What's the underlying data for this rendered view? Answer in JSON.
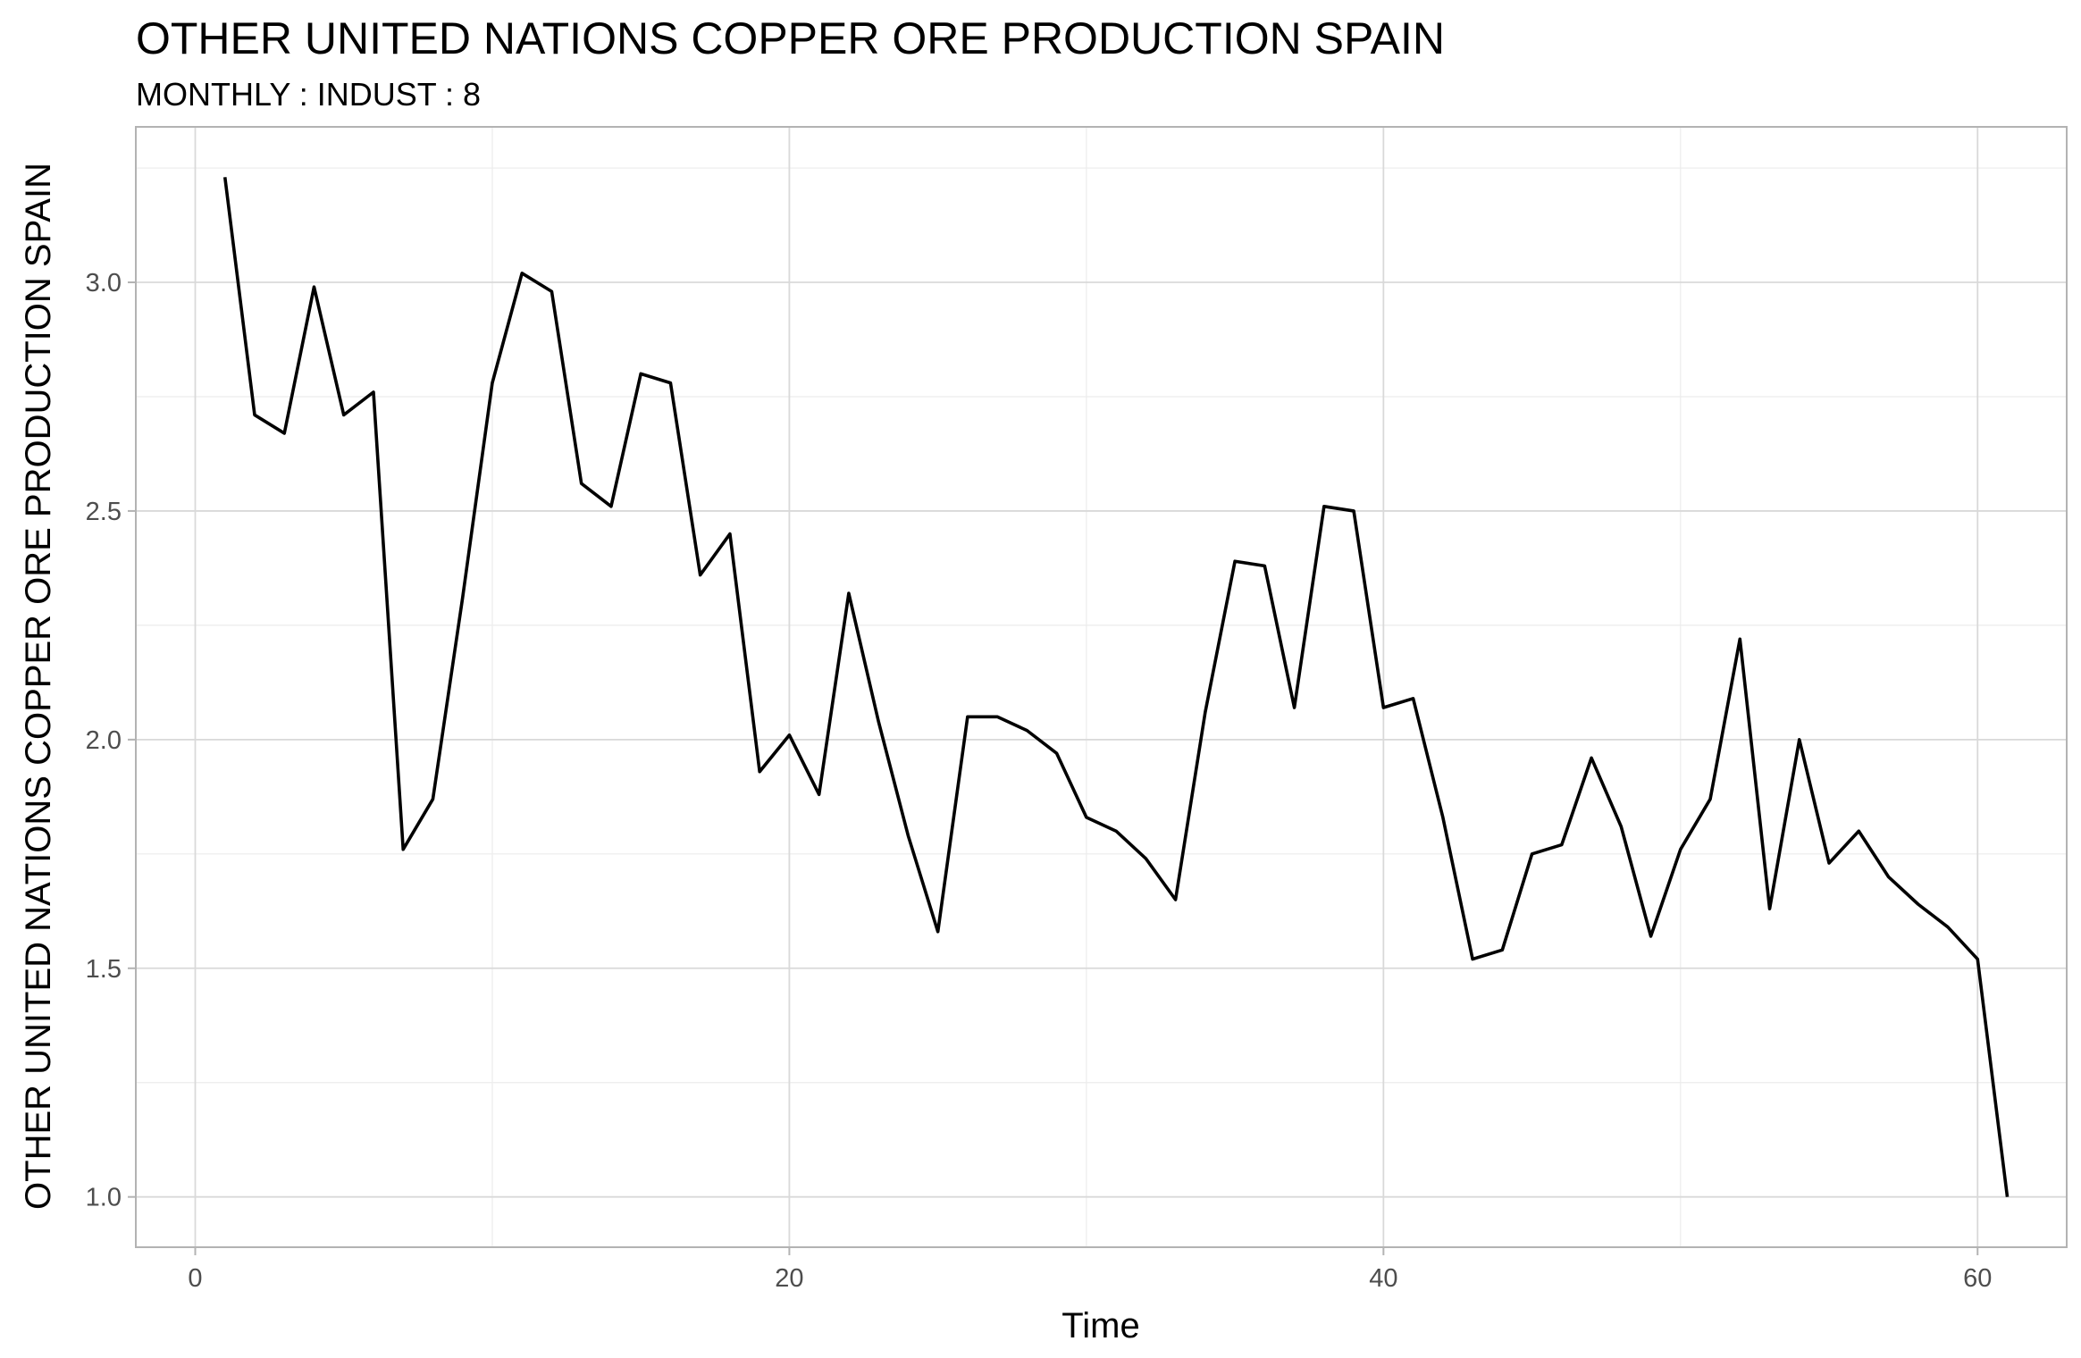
{
  "chart_data": {
    "type": "line",
    "title": "OTHER UNITED NATIONS COPPER ORE PRODUCTION SPAIN",
    "subtitle": "MONTHLY : INDUST : 8",
    "xlabel": "Time",
    "ylabel": "OTHER UNITED NATIONS COPPER ORE PRODUCTION SPAIN",
    "xlim": [
      -2,
      63
    ],
    "ylim": [
      0.89,
      3.34
    ],
    "x_ticks": [
      0,
      20,
      40,
      60
    ],
    "x_tick_labels": [
      "0",
      "20",
      "40",
      "60"
    ],
    "x_minor_ticks": [
      10,
      30,
      50
    ],
    "y_ticks": [
      1.0,
      1.5,
      2.0,
      2.5,
      3.0
    ],
    "y_tick_labels": [
      "1.0",
      "1.5",
      "2.0",
      "2.5",
      "3.0"
    ],
    "y_minor_ticks": [
      1.25,
      1.75,
      2.25,
      2.75,
      3.25
    ],
    "grid": true,
    "legend": "none",
    "line_color": "#000000",
    "series": [
      {
        "x": [
          1,
          2,
          3,
          4,
          5,
          6,
          7,
          8,
          9,
          10,
          11,
          12,
          13,
          14,
          15,
          16,
          17,
          18,
          19,
          20,
          21,
          22,
          23,
          24,
          25,
          26,
          27,
          28,
          29,
          30,
          31,
          32,
          33,
          34,
          35,
          36,
          37,
          38,
          39,
          40,
          41,
          42,
          43,
          44,
          45,
          46,
          47,
          48,
          49,
          50,
          51,
          52,
          53,
          54,
          55,
          56,
          57,
          58,
          59,
          60,
          61
        ],
        "values": [
          3.23,
          2.71,
          2.67,
          2.99,
          2.71,
          2.76,
          1.76,
          1.87,
          2.31,
          2.78,
          3.02,
          2.98,
          2.56,
          2.51,
          2.8,
          2.78,
          2.36,
          2.45,
          1.93,
          2.01,
          1.88,
          2.32,
          2.04,
          1.79,
          1.58,
          2.05,
          2.05,
          2.02,
          1.97,
          1.83,
          1.8,
          1.74,
          1.65,
          2.06,
          2.39,
          2.38,
          2.07,
          2.51,
          2.5,
          2.07,
          2.09,
          1.83,
          1.52,
          1.54,
          1.75,
          1.77,
          1.96,
          1.81,
          1.57,
          1.76,
          1.87,
          2.22,
          1.63,
          2.0,
          1.73,
          1.8,
          1.7,
          1.64,
          1.59,
          1.52,
          1.0
        ]
      }
    ]
  }
}
